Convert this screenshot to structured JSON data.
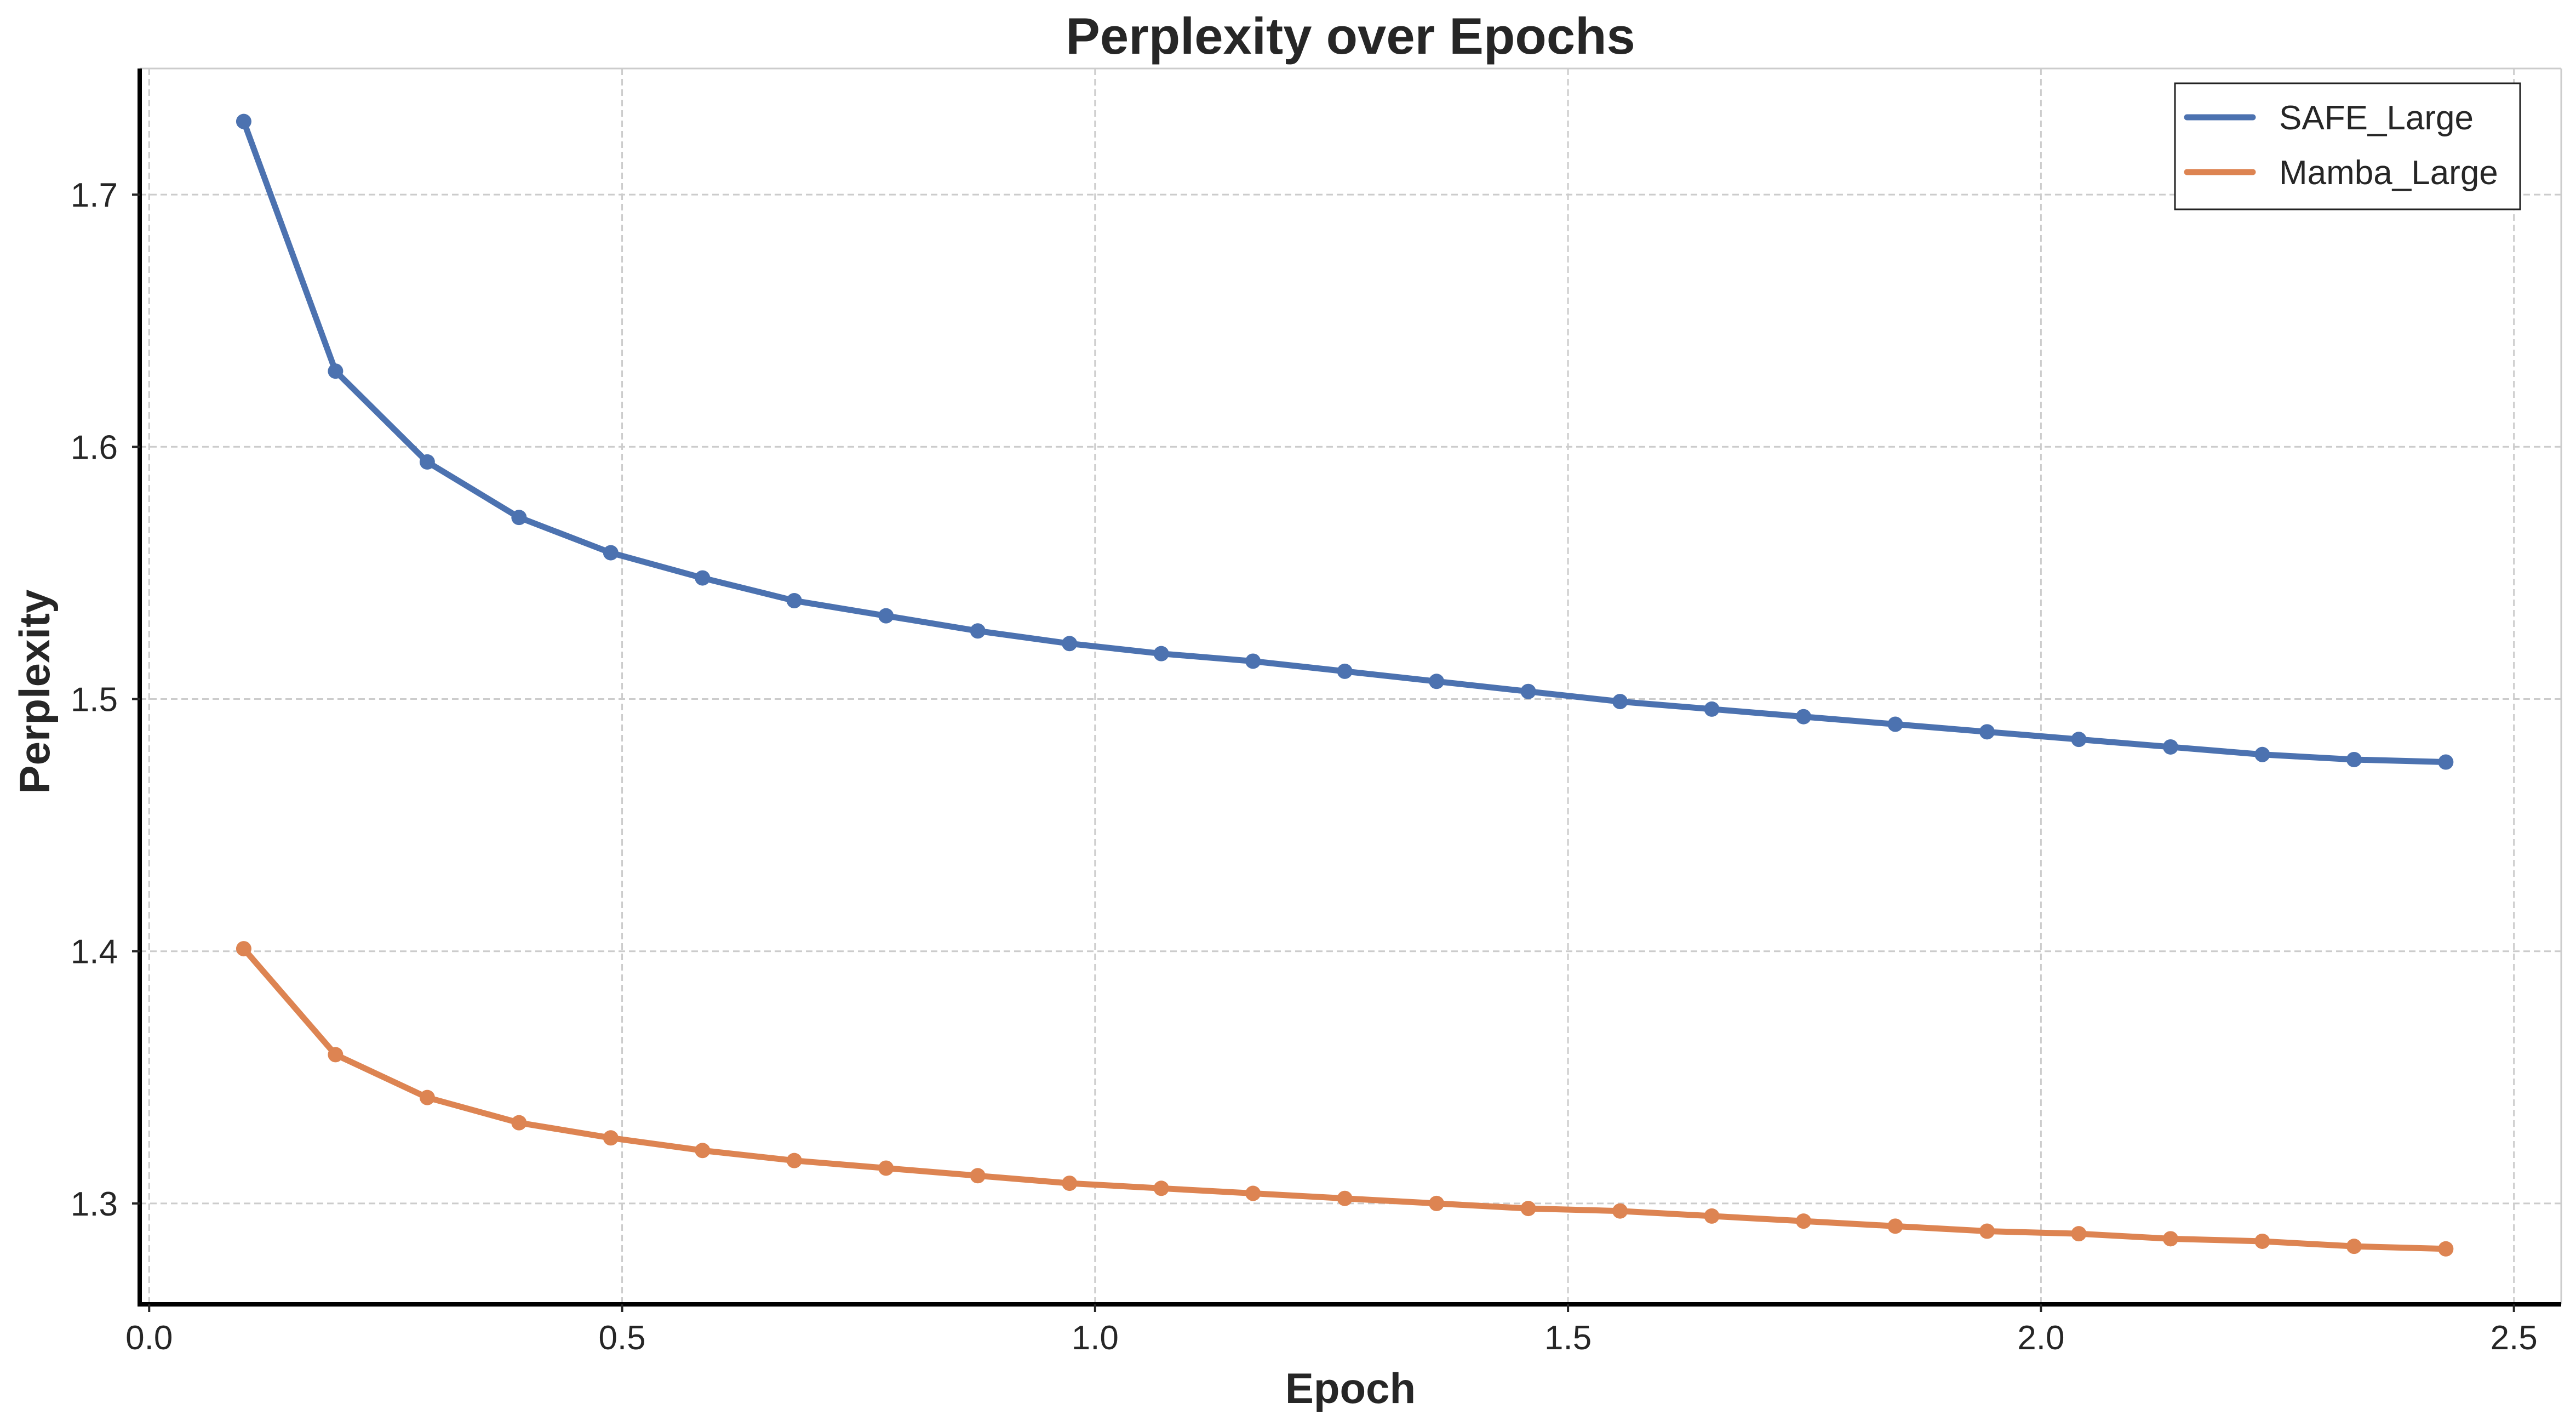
{
  "chart_data": {
    "type": "line",
    "title": "Perplexity over Epochs",
    "xlabel": "Epoch",
    "ylabel": "Perplexity",
    "xlim": [
      -0.01,
      2.55
    ],
    "ylim": [
      1.26,
      1.75
    ],
    "xticks": [
      0.0,
      0.5,
      1.0,
      1.5,
      2.0,
      2.5
    ],
    "xtick_labels": [
      "0.0",
      "0.5",
      "1.0",
      "1.5",
      "2.0",
      "2.5"
    ],
    "yticks": [
      1.3,
      1.4,
      1.5,
      1.6,
      1.7
    ],
    "ytick_labels": [
      "1.3",
      "1.4",
      "1.5",
      "1.6",
      "1.7"
    ],
    "grid": true,
    "legend_position": "top-right",
    "x": [
      0.1,
      0.197,
      0.294,
      0.391,
      0.488,
      0.585,
      0.682,
      0.779,
      0.876,
      0.973,
      1.07,
      1.167,
      1.264,
      1.361,
      1.458,
      1.555,
      1.652,
      1.749,
      1.846,
      1.943,
      2.04,
      2.137,
      2.234,
      2.331,
      2.428
    ],
    "series": [
      {
        "name": "SAFE_Large",
        "color": "#4c72b0",
        "values": [
          1.729,
          1.63,
          1.594,
          1.572,
          1.558,
          1.548,
          1.539,
          1.533,
          1.527,
          1.522,
          1.518,
          1.515,
          1.511,
          1.507,
          1.503,
          1.499,
          1.496,
          1.493,
          1.49,
          1.487,
          1.484,
          1.481,
          1.478,
          1.476,
          1.475
        ]
      },
      {
        "name": "Mamba_Large",
        "color": "#dd8452",
        "values": [
          1.401,
          1.359,
          1.342,
          1.332,
          1.326,
          1.321,
          1.317,
          1.314,
          1.311,
          1.308,
          1.306,
          1.304,
          1.302,
          1.3,
          1.298,
          1.297,
          1.295,
          1.293,
          1.291,
          1.289,
          1.288,
          1.286,
          1.285,
          1.283,
          1.282
        ]
      }
    ]
  }
}
